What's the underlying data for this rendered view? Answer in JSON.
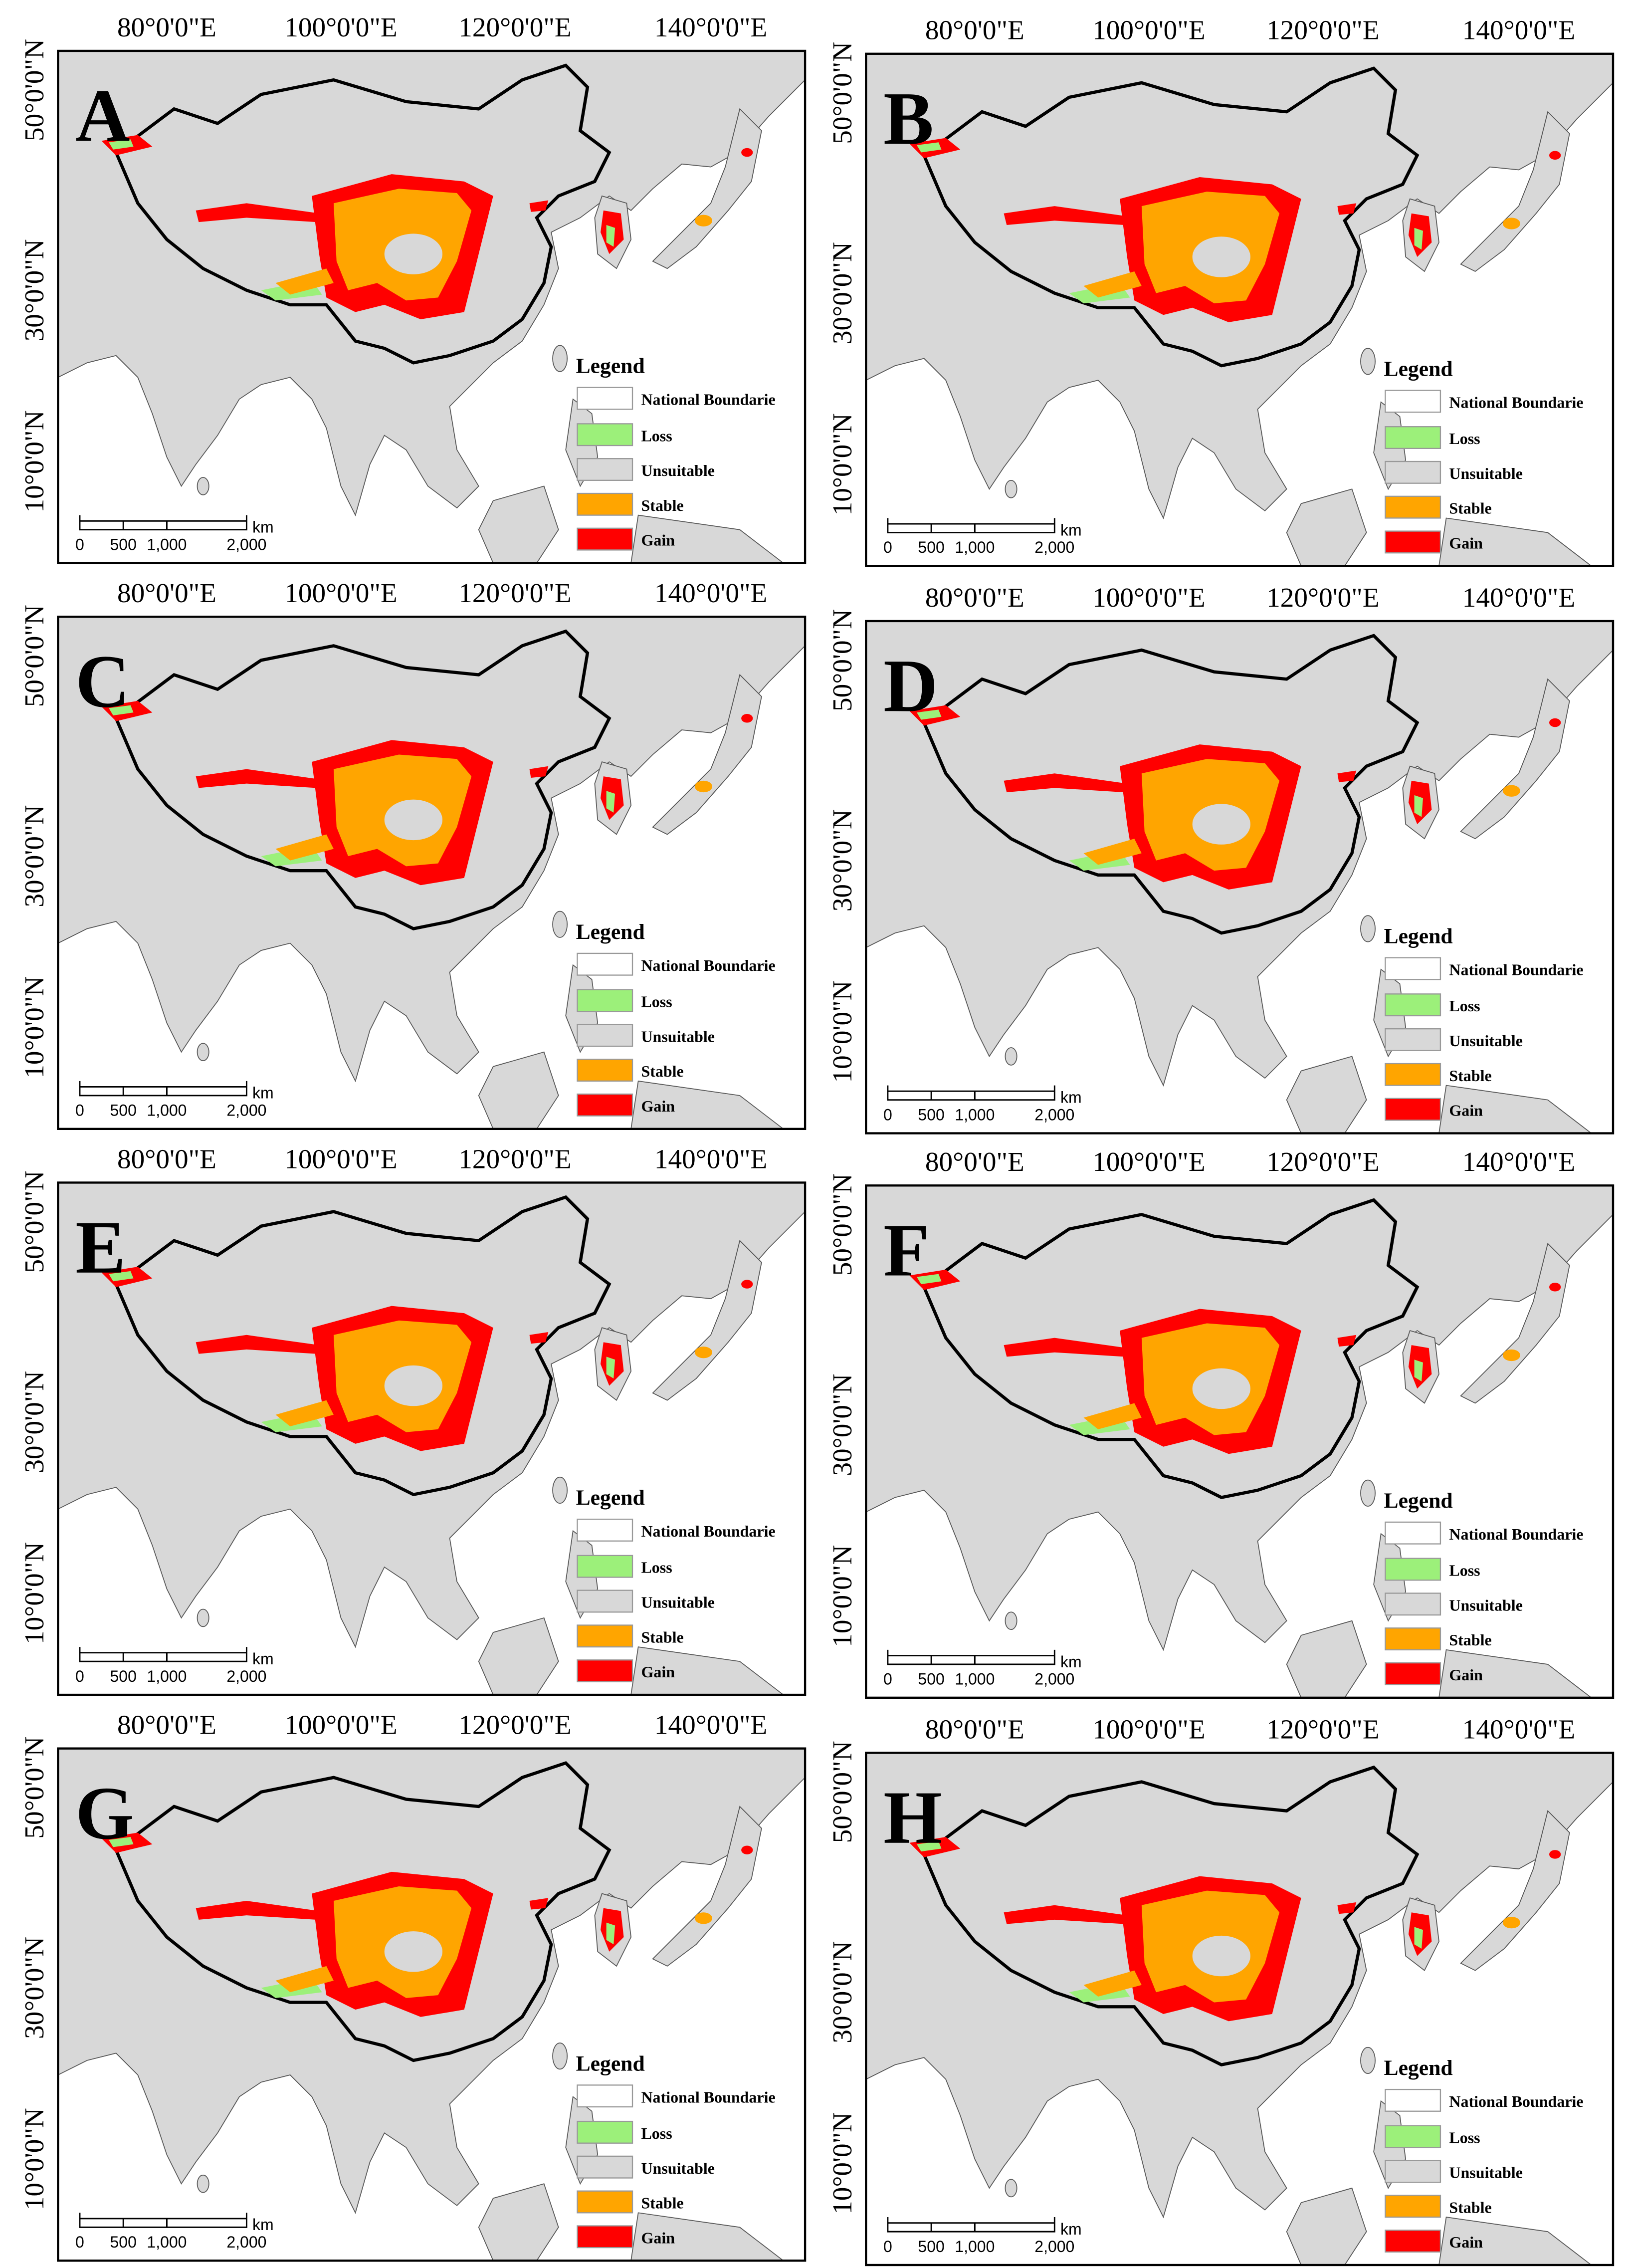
{
  "panels": [
    {
      "label": "A"
    },
    {
      "label": "B"
    },
    {
      "label": "C"
    },
    {
      "label": "D"
    },
    {
      "label": "E"
    },
    {
      "label": "F"
    },
    {
      "label": "G"
    },
    {
      "label": "H"
    }
  ],
  "longitude_labels": [
    "80°0'0\"E",
    "100°0'0\"E",
    "120°0'0\"E",
    "140°0'0\"E"
  ],
  "latitude_labels": [
    "50°0'0\"N",
    "30°0'0\"N",
    "10°0'0\"N"
  ],
  "legend": {
    "title": "Legend",
    "items": [
      {
        "label": "National Boundarie",
        "color": "#ffffff"
      },
      {
        "label": "Loss",
        "color": "#9cf07a"
      },
      {
        "label": "Unsuitable",
        "color": "#d8d8d8"
      },
      {
        "label": "Stable",
        "color": "#ffa500"
      },
      {
        "label": "Gain",
        "color": "#ff0000"
      }
    ]
  },
  "scale_bar": {
    "labels": [
      "0",
      "500",
      "1,000",
      "2,000"
    ],
    "unit": "km"
  }
}
